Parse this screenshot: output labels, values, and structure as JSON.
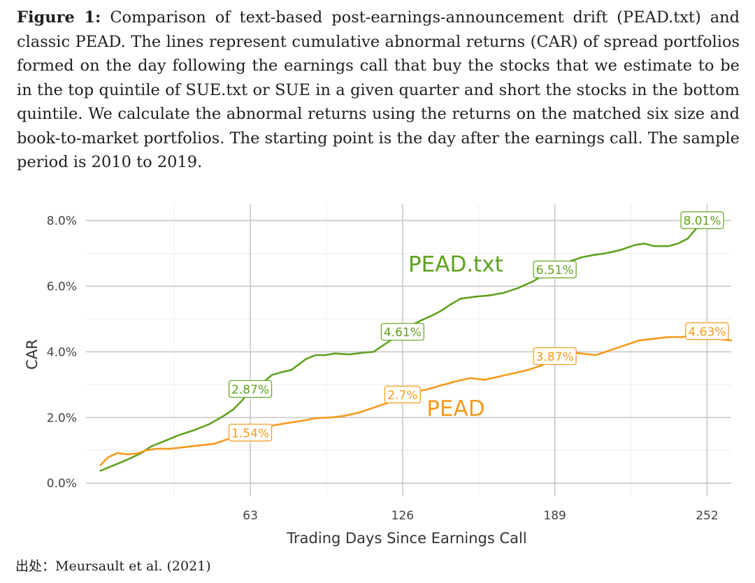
{
  "caption": {
    "lead": "Figure 1:",
    "text": "Comparison of text-based post-earnings-announcement drift (PEAD.txt) and classic PEAD. The lines represent cumulative abnormal returns (CAR) of spread portfolios formed on the day following the earnings call that buy the stocks that we estimate to be in the top quintile of SUE.txt or SUE in a given quarter and short the stocks in the bottom quintile. We calculate the abnormal returns using the returns on the matched six size and book-to-market portfolios. The starting point is the day after the earnings call. The sample period is 2010 to 2019."
  },
  "source": "出处：Meursault et al. (2021)",
  "chart_data": {
    "type": "line",
    "xlabel": "Trading Days Since Earnings Call",
    "ylabel": "CAR",
    "xlim": [
      -5,
      262
    ],
    "ylim": [
      -0.4,
      8.5
    ],
    "xticks": [
      63,
      126,
      189,
      252
    ],
    "xtick_labels": [
      "63",
      "126",
      "189",
      "252"
    ],
    "yticks": [
      0,
      2,
      4,
      6,
      8
    ],
    "ytick_labels": [
      "0.0%",
      "2.0%",
      "4.0%",
      "6.0%",
      "8.0%"
    ],
    "grid": true,
    "colors": {
      "pead_txt": "#5fa21f",
      "pead": "#f59a1e",
      "grid_major": "#c8c8c8",
      "grid_minor": "#ececec"
    },
    "series": [
      {
        "name": "PEAD.txt",
        "color": "#5fa21f",
        "x": [
          1,
          5,
          10,
          14,
          18,
          22,
          28,
          34,
          40,
          46,
          52,
          56,
          60,
          63,
          68,
          72,
          76,
          80,
          86,
          90,
          94,
          98,
          104,
          110,
          114,
          120,
          124,
          126,
          130,
          134,
          138,
          142,
          146,
          150,
          156,
          162,
          168,
          174,
          180,
          186,
          189,
          195,
          200,
          205,
          210,
          216,
          222,
          226,
          230,
          236,
          240,
          244,
          248,
          250
        ],
        "y": [
          0.38,
          0.5,
          0.65,
          0.78,
          0.92,
          1.12,
          1.3,
          1.48,
          1.62,
          1.8,
          2.05,
          2.25,
          2.55,
          2.87,
          3.05,
          3.3,
          3.38,
          3.45,
          3.78,
          3.9,
          3.9,
          3.95,
          3.92,
          3.98,
          4.0,
          4.3,
          4.5,
          4.61,
          4.82,
          4.97,
          5.1,
          5.25,
          5.45,
          5.62,
          5.68,
          5.72,
          5.8,
          5.95,
          6.15,
          6.4,
          6.51,
          6.75,
          6.88,
          6.95,
          7.0,
          7.1,
          7.25,
          7.3,
          7.22,
          7.22,
          7.3,
          7.45,
          7.8,
          8.01
        ]
      },
      {
        "name": "PEAD",
        "color": "#f59a1e",
        "x": [
          1,
          4,
          8,
          12,
          16,
          20,
          24,
          30,
          36,
          42,
          48,
          54,
          58,
          63,
          68,
          74,
          80,
          86,
          90,
          96,
          102,
          108,
          114,
          120,
          126,
          130,
          136,
          142,
          148,
          154,
          160,
          166,
          172,
          178,
          184,
          189,
          194,
          200,
          206,
          212,
          218,
          224,
          230,
          236,
          242,
          248,
          252,
          256,
          262
        ],
        "y": [
          0.55,
          0.78,
          0.92,
          0.88,
          0.9,
          1.0,
          1.05,
          1.05,
          1.1,
          1.15,
          1.2,
          1.35,
          1.48,
          1.54,
          1.7,
          1.78,
          1.85,
          1.92,
          1.98,
          2.0,
          2.05,
          2.15,
          2.3,
          2.45,
          2.7,
          2.78,
          2.85,
          2.98,
          3.1,
          3.2,
          3.15,
          3.25,
          3.35,
          3.45,
          3.6,
          3.87,
          4.0,
          3.95,
          3.9,
          4.05,
          4.2,
          4.35,
          4.4,
          4.45,
          4.45,
          4.6,
          4.63,
          4.4,
          4.35
        ]
      }
    ],
    "annotations": [
      {
        "series": "PEAD.txt",
        "x": 63,
        "y": 2.87,
        "label": "2.87%"
      },
      {
        "series": "PEAD.txt",
        "x": 126,
        "y": 4.61,
        "label": "4.61%"
      },
      {
        "series": "PEAD.txt",
        "x": 189,
        "y": 6.51,
        "label": "6.51%"
      },
      {
        "series": "PEAD.txt",
        "x": 250,
        "y": 8.01,
        "label": "8.01%"
      },
      {
        "series": "PEAD",
        "x": 63,
        "y": 1.54,
        "label": "1.54%"
      },
      {
        "series": "PEAD",
        "x": 126,
        "y": 2.7,
        "label": "2.7%"
      },
      {
        "series": "PEAD",
        "x": 189,
        "y": 3.87,
        "label": "3.87%"
      },
      {
        "series": "PEAD",
        "x": 252,
        "y": 4.63,
        "label": "4.63%"
      }
    ],
    "series_labels": [
      {
        "series": "PEAD.txt",
        "text": "PEAD.txt",
        "x": 148,
        "y": 6.45
      },
      {
        "series": "PEAD",
        "text": "PEAD",
        "x": 148,
        "y": 2.05
      }
    ]
  }
}
